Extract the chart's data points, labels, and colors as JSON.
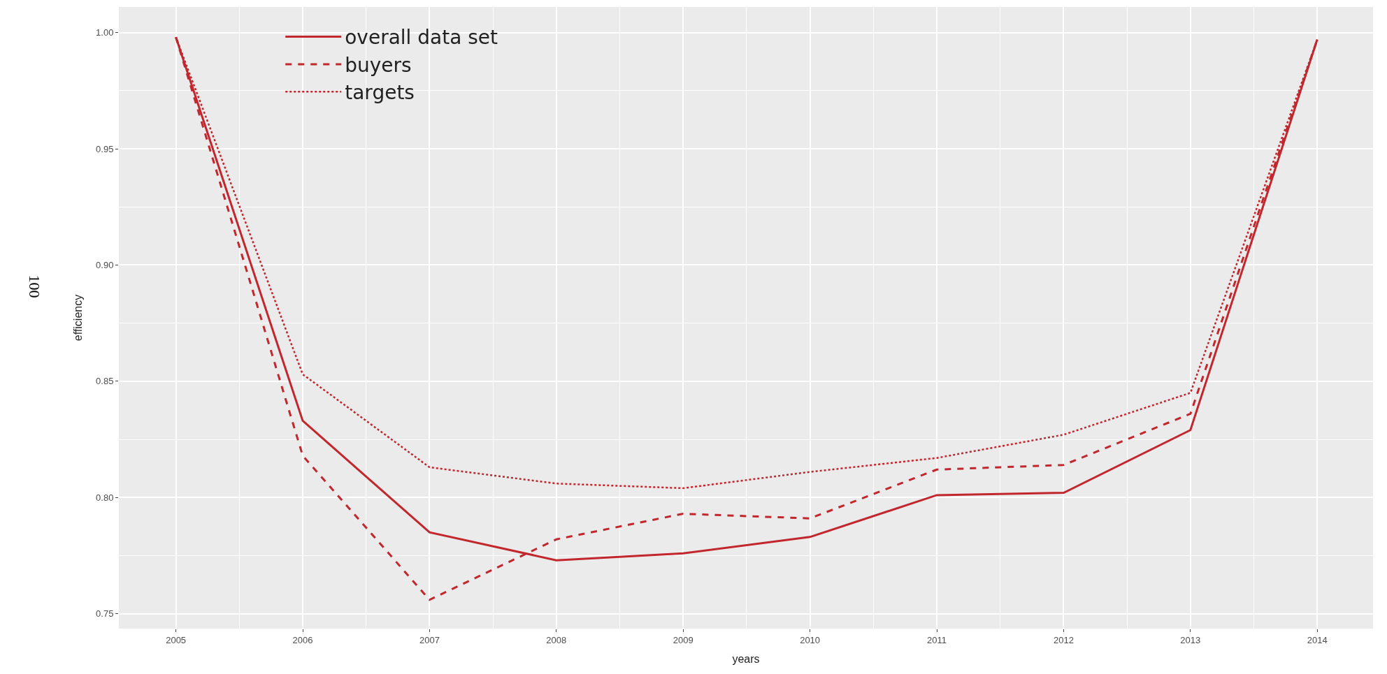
{
  "chart_data": {
    "type": "line",
    "xlabel": "years",
    "ylabel": "efficiency",
    "x": [
      2005,
      2006,
      2007,
      2008,
      2009,
      2010,
      2011,
      2012,
      2013,
      2014
    ],
    "xlim": [
      2004.55,
      2014.44
    ],
    "xticks": [
      2005,
      2006,
      2007,
      2008,
      2009,
      2010,
      2011,
      2012,
      2013,
      2014
    ],
    "ylim": [
      0.7436,
      1.011
    ],
    "yticks": [
      {
        "value": 0.75,
        "label": "0.75"
      },
      {
        "value": 0.8,
        "label": "0.80"
      },
      {
        "value": 0.85,
        "label": "0.85"
      },
      {
        "value": 0.9,
        "label": "0.90"
      },
      {
        "value": 0.95,
        "label": "0.95"
      },
      {
        "value": 1.0,
        "label": "1.00"
      }
    ],
    "grid": true,
    "legend": "top left",
    "series": [
      {
        "name": "overall data set",
        "color": "#c1272d",
        "line_style": "solid",
        "values": [
          0.998,
          0.833,
          0.785,
          0.773,
          0.776,
          0.783,
          0.801,
          0.802,
          0.829,
          0.997
        ]
      },
      {
        "name": "buyers",
        "color": "#c1272d",
        "line_style": "dashed",
        "values": [
          0.998,
          0.818,
          0.756,
          0.782,
          0.793,
          0.791,
          0.812,
          0.814,
          0.836,
          0.997
        ]
      },
      {
        "name": "targets",
        "color": "#c1272d",
        "line_style": "dotted",
        "values": [
          0.998,
          0.853,
          0.813,
          0.806,
          0.804,
          0.811,
          0.817,
          0.827,
          0.845,
          0.997
        ]
      }
    ],
    "annotations": [
      "100"
    ]
  }
}
